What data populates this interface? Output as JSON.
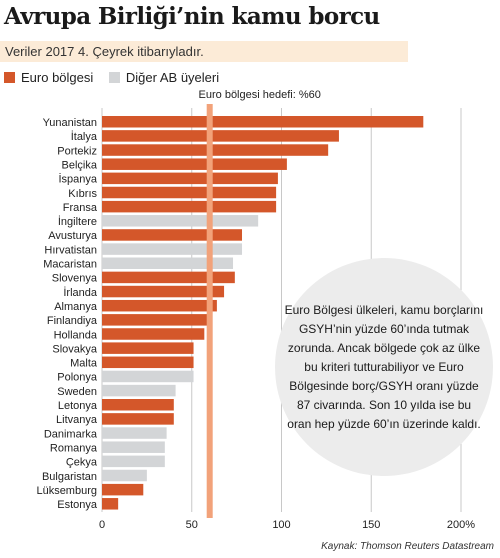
{
  "title": "Avrupa Birliği’nin kamu borcu",
  "subtitle": "Veriler 2017 4. Çeyrek itibarıyladır.",
  "legend": [
    {
      "label": "Euro bölgesi",
      "color": "#d4572a"
    },
    {
      "label": "Diğer AB üyeleri",
      "color": "#d3d5d7"
    }
  ],
  "target_label": "Euro bölgesi hedefi: %60",
  "info_text": "Euro Bölgesi ülkeleri, kamu borçlarını GSYH’nin yüzde 60’ında tutmak zorunda. Ancak bölgede çok az ülke bu kriteri tutturabiliyor ve Euro Bölgesinde borç/GSYH oranı yüzde 87 civarında. Son 10 yılda ise bu oran hep yüzde 60’ın üzerinde kaldı.",
  "source": "Kaynak: Thomson Reuters Datastream",
  "chart_data": {
    "type": "bar",
    "orientation": "horizontal",
    "xlim": [
      0,
      200
    ],
    "ticks": [
      0,
      50,
      100,
      150,
      200
    ],
    "tick_labels": [
      "0",
      "50",
      "100",
      "150",
      "200%"
    ],
    "target": 60,
    "categories": [
      "Yunanistan",
      "İtalya",
      "Portekiz",
      "Belçika",
      "İspanya",
      "Kıbrıs",
      "Fransa",
      "İngiltere",
      "Avusturya",
      "Hırvatistan",
      "Macaristan",
      "Slovenya",
      "İrlanda",
      "Almanya",
      "Finlandiya",
      "Hollanda",
      "Slovakya",
      "Malta",
      "Polonya",
      "Sweden",
      "Letonya",
      "Litvanya",
      "Danimarka",
      "Romanya",
      "Çekya",
      "Bulgaristan",
      "Lüksemburg",
      "Estonya"
    ],
    "values": [
      179,
      132,
      126,
      103,
      98,
      97,
      97,
      87,
      78,
      78,
      73,
      74,
      68,
      64,
      61,
      57,
      51,
      51,
      51,
      41,
      40,
      40,
      36,
      35,
      35,
      25,
      23,
      9
    ],
    "group": [
      "euro",
      "euro",
      "euro",
      "euro",
      "euro",
      "euro",
      "euro",
      "other",
      "euro",
      "other",
      "other",
      "euro",
      "euro",
      "euro",
      "euro",
      "euro",
      "euro",
      "euro",
      "other",
      "other",
      "euro",
      "euro",
      "other",
      "other",
      "other",
      "other",
      "euro",
      "euro"
    ]
  }
}
